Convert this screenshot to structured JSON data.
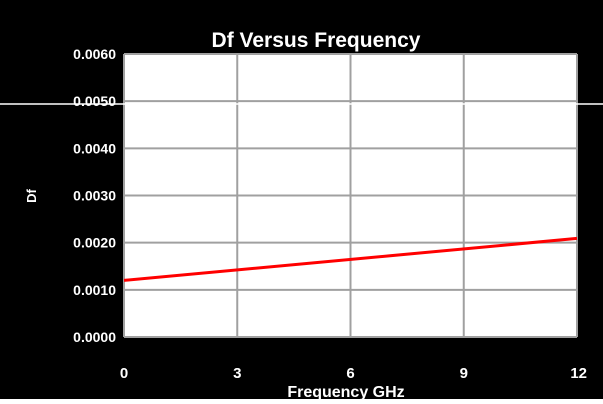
{
  "chart_data": {
    "type": "line",
    "title": "Df Versus Frequency",
    "xlabel": "Frequency GHz",
    "ylabel": "Df",
    "xlim": [
      0,
      12
    ],
    "ylim": [
      0,
      0.006
    ],
    "x_ticks": [
      0,
      3,
      6,
      9,
      12
    ],
    "x_tick_labels": [
      "0",
      "3",
      "6",
      "9",
      "12"
    ],
    "y_ticks": [
      0,
      0.001,
      0.002,
      0.003,
      0.004,
      0.005,
      0.006
    ],
    "y_tick_labels": [
      "0.0000",
      "0.0010",
      "0.0020",
      "0.0030",
      "0.0040",
      "0.0050",
      "0.0060"
    ],
    "grid": true,
    "series": [
      {
        "x": [
          0,
          12
        ],
        "y": [
          0.0012,
          0.00209
        ],
        "color": "#ff0000"
      }
    ],
    "colors": {
      "background": "#000000",
      "plot_area": "#ffffff",
      "grid": "#a0a0a0",
      "text": "#ffffff"
    }
  }
}
